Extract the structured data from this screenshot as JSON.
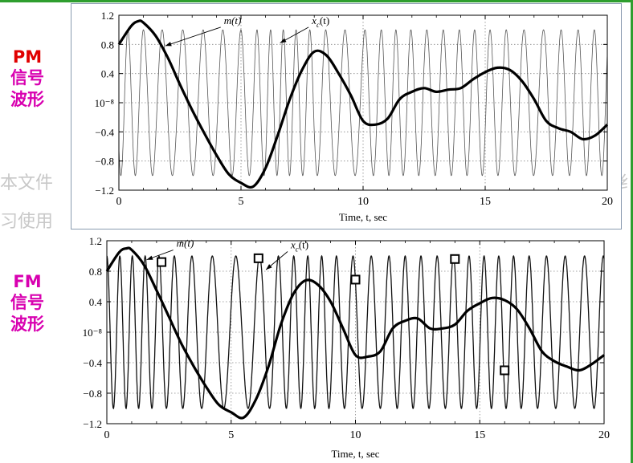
{
  "slide": {
    "watermark_left_1": "本文件",
    "watermark_left_2": "习使用",
    "watermark_right": "纟",
    "pm_label": {
      "code": "PM",
      "line1": "信号",
      "line2": "波形"
    },
    "fm_label": {
      "code": "FM",
      "line1": "信号",
      "line2": "波形"
    }
  },
  "colors": {
    "pm_code": "#e00000",
    "fm_code": "#d800b0",
    "cn": "#d800b0",
    "accent_line": "#2e9e2e"
  },
  "chart_data": [
    {
      "id": "pm",
      "type": "line",
      "xlabel": "Time, t, sec",
      "xlim": [
        0,
        20
      ],
      "ylim": [
        -1.2,
        1.2
      ],
      "xticks": [
        0,
        5,
        10,
        15,
        20
      ],
      "yticks": [
        1.2,
        0.8,
        0.4,
        0,
        -0.4,
        -0.8,
        -1.2
      ],
      "ytick_labels": [
        "1.2",
        "0.8",
        "0.4",
        "10⁻⁸",
        "−0.4",
        "−0.8",
        "−1.2"
      ],
      "grid": true,
      "annotations": [
        {
          "text": "m(t)",
          "tip_x": 1.9,
          "tip_y": 0.78,
          "text_x": 4.3,
          "text_y": 1.08
        },
        {
          "text": "x",
          "sub": "c",
          "suffix": "(t)",
          "tip_x": 6.6,
          "tip_y": 0.82,
          "text_x": 7.9,
          "text_y": 1.08
        }
      ],
      "message": {
        "name": "m(t)",
        "x": [
          0,
          0.5,
          0.8,
          1.0,
          1.5,
          2.0,
          2.5,
          3.0,
          3.5,
          4.0,
          4.5,
          5.0,
          5.5,
          6.0,
          6.5,
          7.0,
          7.5,
          8.0,
          8.5,
          9.0,
          9.5,
          10.0,
          10.5,
          11.0,
          11.5,
          12.0,
          12.5,
          13.0,
          13.5,
          14.0,
          14.5,
          15.0,
          15.5,
          16.0,
          16.5,
          17.0,
          17.5,
          18.0,
          18.5,
          19.0,
          19.5,
          20.0
        ],
        "y": [
          0.8,
          1.05,
          1.12,
          1.1,
          0.92,
          0.62,
          0.25,
          -0.1,
          -0.42,
          -0.72,
          -0.98,
          -1.1,
          -1.15,
          -0.9,
          -0.45,
          0.05,
          0.45,
          0.7,
          0.65,
          0.4,
          0.1,
          -0.25,
          -0.3,
          -0.22,
          0.05,
          0.15,
          0.2,
          0.15,
          0.18,
          0.2,
          0.32,
          0.42,
          0.48,
          0.45,
          0.3,
          0.05,
          -0.25,
          -0.35,
          -0.4,
          -0.5,
          -0.45,
          -0.3
        ]
      },
      "carrier": {
        "name": "x_c(t)",
        "amplitude": 1.0,
        "cycles": 30,
        "phase_depth": 0.9
      }
    },
    {
      "id": "fm",
      "type": "line",
      "xlabel": "Time, t, sec",
      "xlim": [
        0,
        20
      ],
      "ylim": [
        -1.2,
        1.2
      ],
      "xticks": [
        0,
        5,
        10,
        15,
        20
      ],
      "yticks": [
        1.2,
        0.8,
        0.4,
        0,
        -0.4,
        -0.8,
        -1.2
      ],
      "ytick_labels": [
        "1.2",
        "0.8",
        "0.4",
        "10⁻⁸",
        "−0.4",
        "−0.8",
        "−1.2"
      ],
      "grid": true,
      "annotations": [
        {
          "text": "m(t)",
          "tip_x": 1.6,
          "tip_y": 0.95,
          "text_x": 2.8,
          "text_y": 1.12
        },
        {
          "text": "x",
          "sub": "c",
          "suffix": "(t)",
          "tip_x": 6.4,
          "tip_y": 0.82,
          "text_x": 7.4,
          "text_y": 1.1
        }
      ],
      "markers": [
        {
          "x": 2.2,
          "y": 0.92
        },
        {
          "x": 6.1,
          "y": 0.97
        },
        {
          "x": 10.0,
          "y": 0.69
        },
        {
          "x": 14.0,
          "y": 0.96
        },
        {
          "x": 16.0,
          "y": -0.5
        }
      ],
      "message": {
        "name": "m(t)",
        "x": [
          0,
          0.5,
          0.8,
          1.0,
          1.5,
          2.0,
          2.5,
          3.0,
          3.5,
          4.0,
          4.5,
          5.0,
          5.5,
          6.0,
          6.5,
          7.0,
          7.5,
          8.0,
          8.5,
          9.0,
          9.5,
          10.0,
          10.5,
          11.0,
          11.5,
          12.0,
          12.5,
          13.0,
          13.5,
          14.0,
          14.5,
          15.0,
          15.5,
          16.0,
          16.5,
          17.0,
          17.5,
          18.0,
          18.5,
          19.0,
          19.5,
          20.0
        ],
        "y": [
          0.8,
          1.05,
          1.1,
          1.08,
          0.88,
          0.55,
          0.2,
          -0.15,
          -0.45,
          -0.72,
          -0.95,
          -1.05,
          -1.12,
          -0.88,
          -0.45,
          0.1,
          0.5,
          0.68,
          0.62,
          0.4,
          0.05,
          -0.3,
          -0.32,
          -0.25,
          0.05,
          0.15,
          0.18,
          0.05,
          0.05,
          0.1,
          0.28,
          0.38,
          0.45,
          0.42,
          0.3,
          0.05,
          -0.25,
          -0.38,
          -0.45,
          -0.5,
          -0.42,
          -0.3
        ]
      },
      "carrier": {
        "name": "x_c(t)",
        "amplitude": 1.0,
        "base_cycles": 30,
        "freq_deviation": 0.45
      }
    }
  ]
}
